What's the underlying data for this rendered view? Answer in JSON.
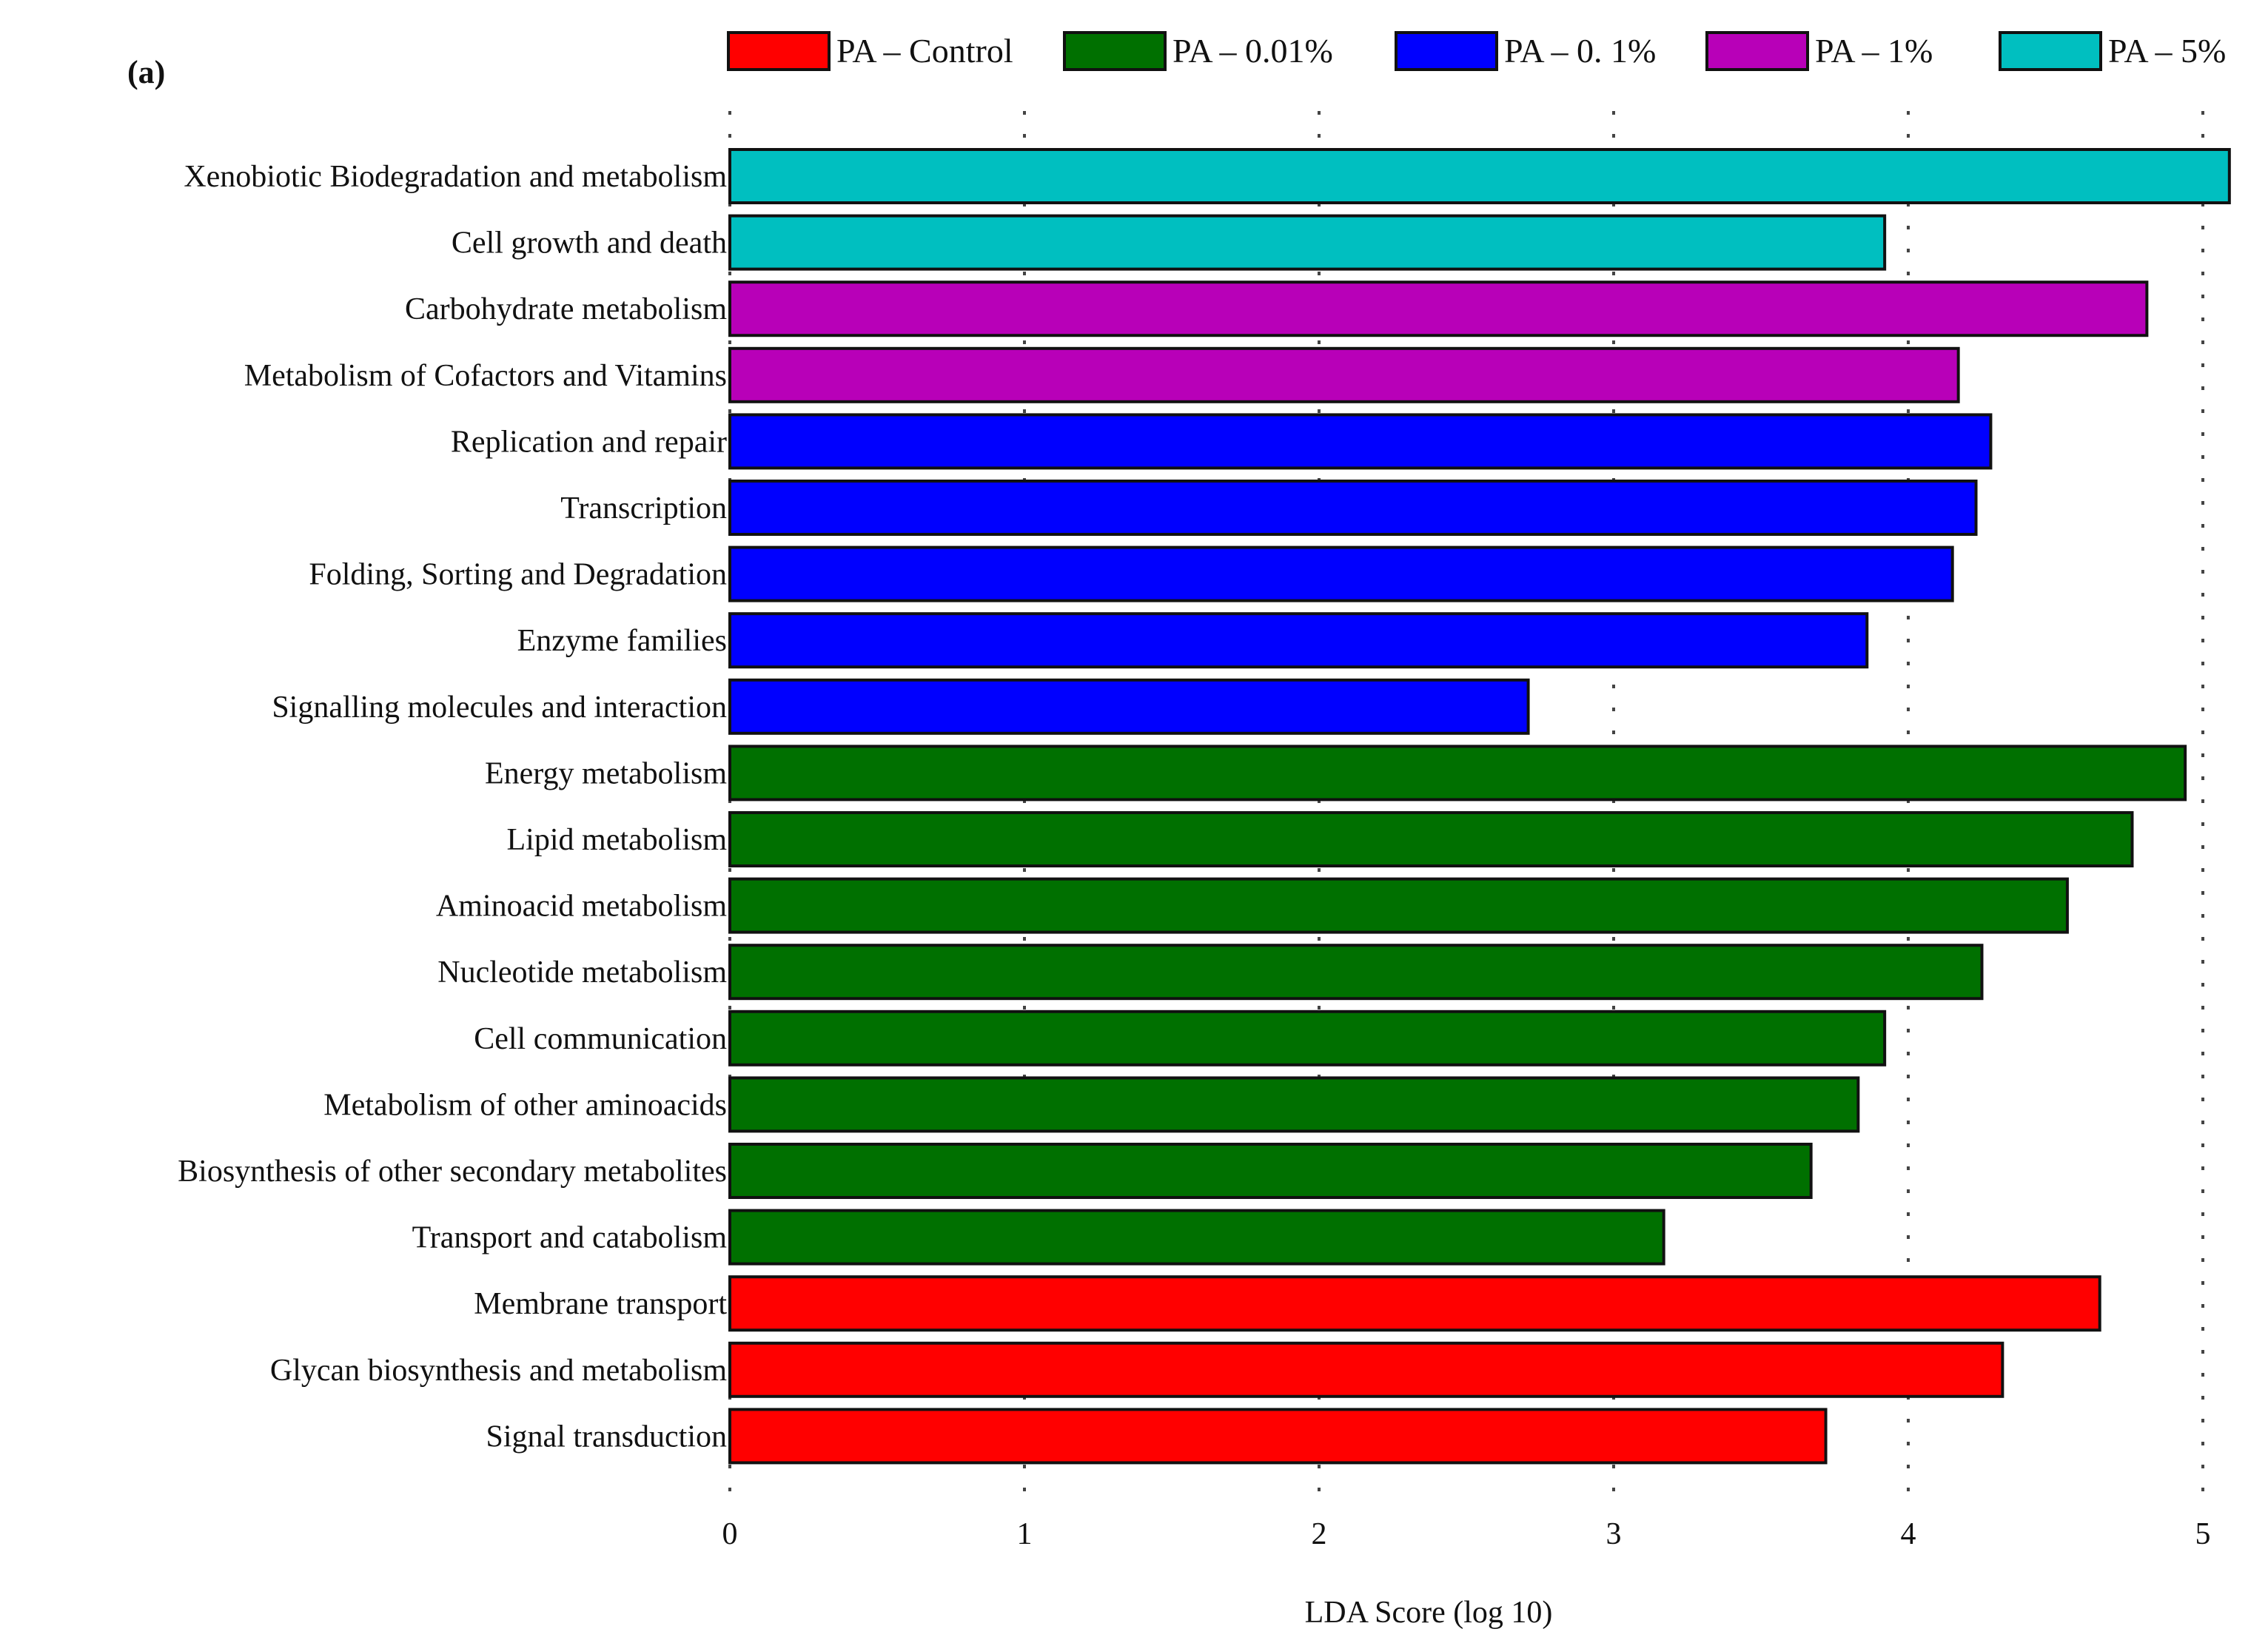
{
  "panel_label": "(a)",
  "chart_data": {
    "type": "bar",
    "orientation": "horizontal",
    "xlabel": "LDA Score (log 10)",
    "xlim": [
      0,
      5.1
    ],
    "xticks": [
      "0",
      "1",
      "2",
      "3",
      "4",
      "5"
    ],
    "grid": "vertical dotted",
    "legend_position": "top",
    "legend": [
      {
        "name": "PA – Control",
        "color": "#ff0000"
      },
      {
        "name": "PA – 0.01%",
        "color": "#007000"
      },
      {
        "name": "PA – 0. 1%",
        "color": "#0000ff"
      },
      {
        "name": "PA – 1%",
        "color": "#b800b8"
      },
      {
        "name": "PA – 5%",
        "color": "#00bfc0"
      }
    ],
    "bars": [
      {
        "label": "Xenobiotic Biodegradation and metabolism",
        "value": 5.09,
        "group": 4
      },
      {
        "label": "Cell growth and death",
        "value": 3.92,
        "group": 4
      },
      {
        "label": "Carbohydrate metabolism",
        "value": 4.81,
        "group": 3
      },
      {
        "label": "Metabolism of Cofactors and Vitamins",
        "value": 4.17,
        "group": 3
      },
      {
        "label": "Replication and repair",
        "value": 4.28,
        "group": 2
      },
      {
        "label": "Transcription",
        "value": 4.23,
        "group": 2
      },
      {
        "label": "Folding, Sorting and Degradation",
        "value": 4.15,
        "group": 2
      },
      {
        "label": "Enzyme families",
        "value": 3.86,
        "group": 2
      },
      {
        "label": "Signalling molecules and interaction",
        "value": 2.71,
        "group": 2
      },
      {
        "label": "Energy metabolism",
        "value": 4.94,
        "group": 1
      },
      {
        "label": "Lipid metabolism",
        "value": 4.76,
        "group": 1
      },
      {
        "label": "Aminoacid metabolism",
        "value": 4.54,
        "group": 1
      },
      {
        "label": "Nucleotide metabolism",
        "value": 4.25,
        "group": 1
      },
      {
        "label": "Cell communication",
        "value": 3.92,
        "group": 1
      },
      {
        "label": "Metabolism of other aminoacids",
        "value": 3.83,
        "group": 1
      },
      {
        "label": "Biosynthesis of other secondary metabolites",
        "value": 3.67,
        "group": 1
      },
      {
        "label": "Transport and catabolism",
        "value": 3.17,
        "group": 1
      },
      {
        "label": "Membrane transport",
        "value": 4.65,
        "group": 0
      },
      {
        "label": "Glycan biosynthesis and metabolism",
        "value": 4.32,
        "group": 0
      },
      {
        "label": "Signal transduction",
        "value": 3.72,
        "group": 0
      }
    ]
  }
}
